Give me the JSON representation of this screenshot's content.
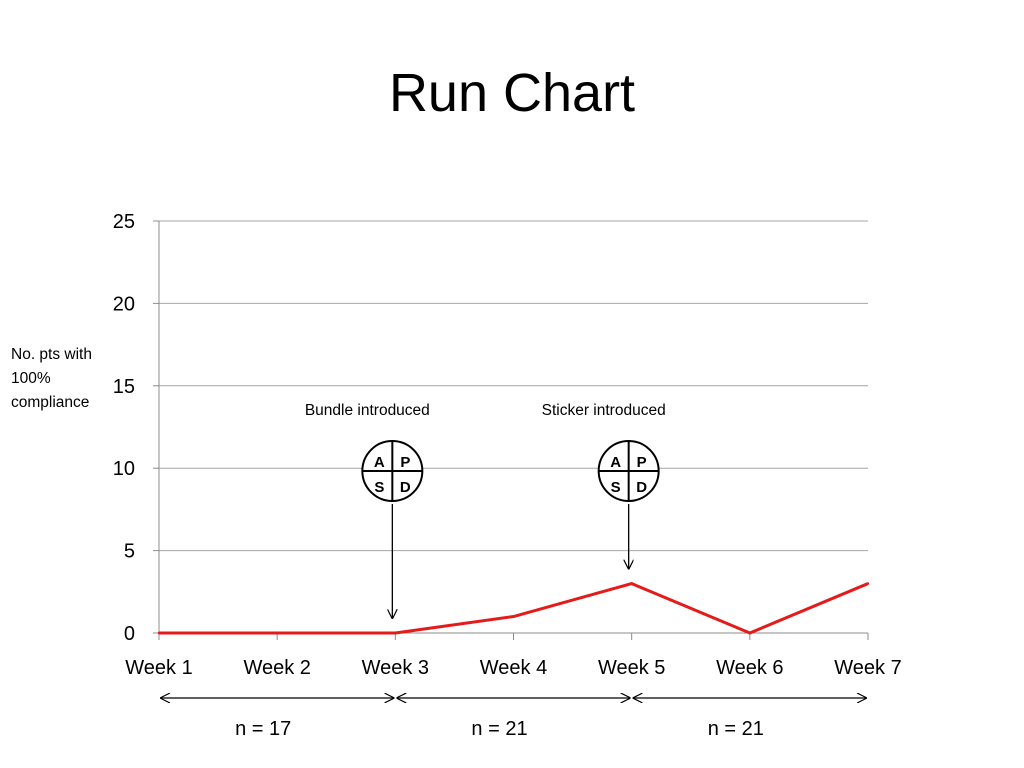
{
  "slide": {
    "title": "Run Chart"
  },
  "chart_data": {
    "type": "line",
    "title": "Run Chart",
    "xlabel": "",
    "ylabel": "No. pts with 100% compliance",
    "categories": [
      "Week 1",
      "Week 2",
      "Week 3",
      "Week 4",
      "Week 5",
      "Week 6",
      "Week 7"
    ],
    "series": [
      {
        "values": [
          0,
          0,
          0,
          1,
          3,
          0,
          3
        ],
        "color": "#e31b1b"
      }
    ],
    "ylim": [
      0,
      25
    ],
    "yticks": [
      0,
      5,
      10,
      15,
      20,
      25
    ],
    "grid": true,
    "legend": "none",
    "annotations": [
      {
        "label": "Bundle introduced",
        "category_index": 2,
        "pdsa_letters": [
          "A",
          "P",
          "S",
          "D"
        ]
      },
      {
        "label": "Sticker introduced",
        "category_index": 4,
        "pdsa_letters": [
          "A",
          "P",
          "S",
          "D"
        ]
      }
    ],
    "sample_sizes": [
      {
        "label": "n = 17",
        "from_index": 0,
        "to_index": 2
      },
      {
        "label": "n = 21",
        "from_index": 2,
        "to_index": 4
      },
      {
        "label": "n = 21",
        "from_index": 4,
        "to_index": 6
      }
    ]
  }
}
